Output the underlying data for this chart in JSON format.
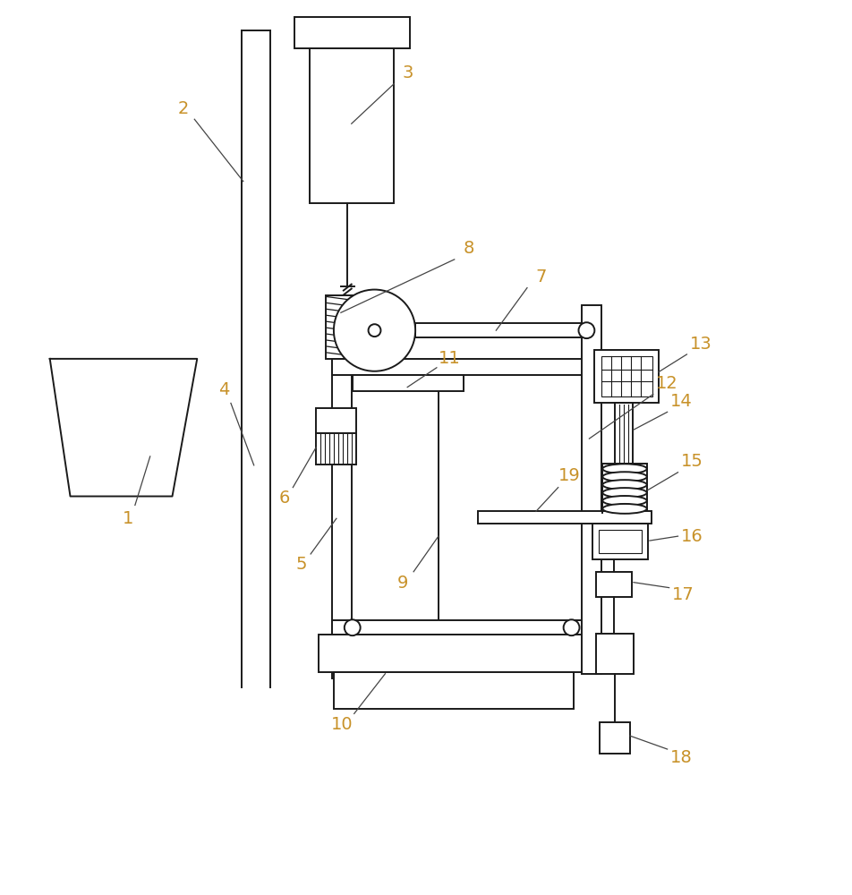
{
  "bg_color": "#ffffff",
  "line_color": "#1a1a1a",
  "label_color": "#c8922a",
  "lw": 1.4,
  "fig_width": 9.53,
  "fig_height": 10.0
}
